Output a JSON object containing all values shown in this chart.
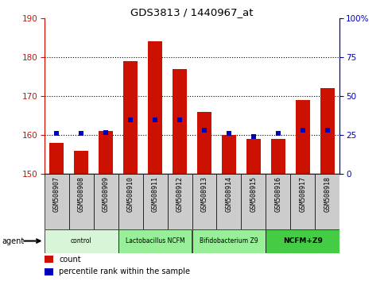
{
  "title": "GDS3813 / 1440967_at",
  "samples": [
    "GSM508907",
    "GSM508908",
    "GSM508909",
    "GSM508910",
    "GSM508911",
    "GSM508912",
    "GSM508913",
    "GSM508914",
    "GSM508915",
    "GSM508916",
    "GSM508917",
    "GSM508918"
  ],
  "counts": [
    158,
    156,
    161,
    179,
    184,
    177,
    166,
    160,
    159,
    159,
    169,
    172
  ],
  "percentile_rank": [
    26,
    26,
    26.5,
    35,
    35,
    35,
    28,
    26,
    24,
    26,
    28,
    28
  ],
  "ylim_left": [
    150,
    190
  ],
  "ylim_right": [
    0,
    100
  ],
  "yticks_left": [
    150,
    160,
    170,
    180,
    190
  ],
  "yticks_right": [
    0,
    25,
    50,
    75,
    100
  ],
  "ytick_labels_right": [
    "0",
    "25",
    "50",
    "75",
    "100%"
  ],
  "bar_color": "#cc1100",
  "marker_color": "#0000bb",
  "groups": [
    {
      "label": "control",
      "start": 0,
      "end": 3,
      "color": "#d8f5d8"
    },
    {
      "label": "Lactobacillus NCFM",
      "start": 3,
      "end": 6,
      "color": "#99ee99"
    },
    {
      "label": "Bifidobacterium Z9",
      "start": 6,
      "end": 9,
      "color": "#99ee99"
    },
    {
      "label": "NCFM+Z9",
      "start": 9,
      "end": 12,
      "color": "#44cc44"
    }
  ],
  "agent_label": "agent",
  "legend_count_label": "count",
  "legend_pct_label": "percentile rank within the sample",
  "tick_label_color_left": "#cc1100",
  "tick_label_color_right": "#0000bb",
  "bar_bottom": 150,
  "pct_scale_max": 100,
  "gridline_values": [
    160,
    170,
    180
  ],
  "ytick_label_150": "150"
}
